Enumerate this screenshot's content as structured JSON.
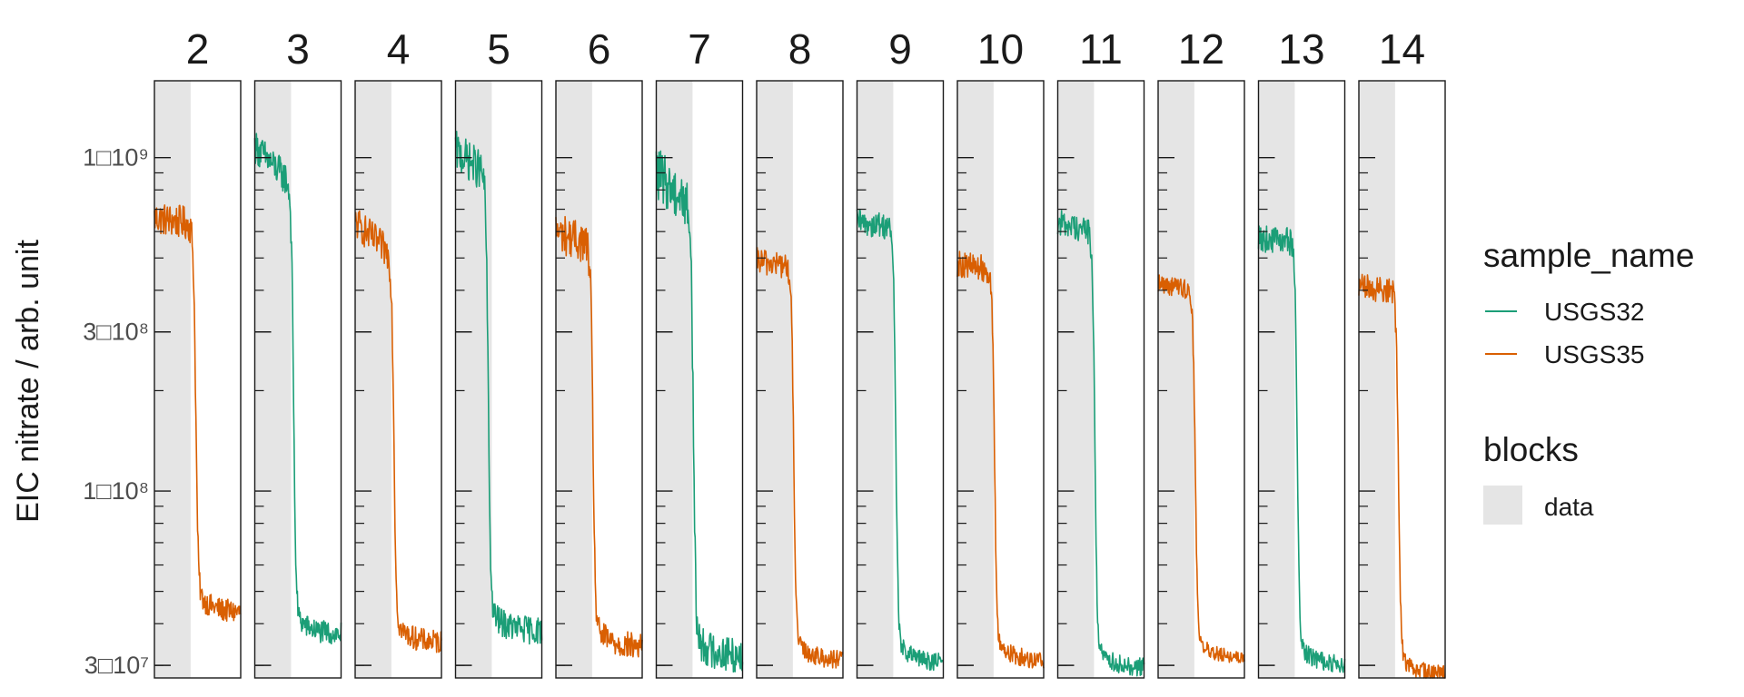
{
  "chart_data": {
    "type": "line",
    "y_scale": "log",
    "ylabel": "EIC nitrate / arb. unit",
    "xlabel": "",
    "ylim": [
      27500000,
      1700000000
    ],
    "y_ticks": [
      {
        "value": 1000000000,
        "label": "1□10⁹"
      },
      {
        "value": 300000000,
        "label": "3□10⁸"
      },
      {
        "value": 100000000,
        "label": "1□10⁸"
      },
      {
        "value": 30000000,
        "label": "3□10⁷"
      }
    ],
    "grid": false,
    "colors": {
      "USGS32": "#1b9e77",
      "USGS35": "#d95f02",
      "data_block": "#e5e5e5"
    },
    "legend": {
      "placement": "right",
      "color_title": "sample_name",
      "fill_title": "blocks",
      "fill_label": "data"
    },
    "panels": [
      {
        "label": "2",
        "sample": "USGS35",
        "start": 660000000,
        "plateau": 630000000,
        "drop": 0.48,
        "end": 43000000,
        "noise": 0.05
      },
      {
        "label": "3",
        "sample": "USGS32",
        "start": 1080000000,
        "plateau": 820000000,
        "drop": 0.45,
        "end": 37000000,
        "noise": 0.05
      },
      {
        "label": "4",
        "sample": "USGS35",
        "start": 640000000,
        "plateau": 500000000,
        "drop": 0.45,
        "end": 35000000,
        "noise": 0.05
      },
      {
        "label": "5",
        "sample": "USGS32",
        "start": 1050000000,
        "plateau": 880000000,
        "drop": 0.38,
        "end": 38000000,
        "noise": 0.06
      },
      {
        "label": "6",
        "sample": "USGS35",
        "start": 600000000,
        "plateau": 540000000,
        "drop": 0.43,
        "end": 34000000,
        "noise": 0.06
      },
      {
        "label": "7",
        "sample": "USGS32",
        "start": 900000000,
        "plateau": 700000000,
        "drop": 0.43,
        "end": 32000000,
        "noise": 0.08
      },
      {
        "label": "8",
        "sample": "USGS35",
        "start": 490000000,
        "plateau": 470000000,
        "drop": 0.43,
        "end": 31000000,
        "noise": 0.04
      },
      {
        "label": "9",
        "sample": "USGS32",
        "start": 640000000,
        "plateau": 620000000,
        "drop": 0.45,
        "end": 30500000,
        "noise": 0.04
      },
      {
        "label": "10",
        "sample": "USGS35",
        "start": 480000000,
        "plateau": 460000000,
        "drop": 0.43,
        "end": 31000000,
        "noise": 0.04
      },
      {
        "label": "11",
        "sample": "USGS32",
        "start": 640000000,
        "plateau": 600000000,
        "drop": 0.43,
        "end": 29500000,
        "noise": 0.04
      },
      {
        "label": "12",
        "sample": "USGS35",
        "start": 420000000,
        "plateau": 400000000,
        "drop": 0.43,
        "end": 31500000,
        "noise": 0.03
      },
      {
        "label": "13",
        "sample": "USGS32",
        "start": 570000000,
        "plateau": 560000000,
        "drop": 0.45,
        "end": 30000000,
        "noise": 0.04
      },
      {
        "label": "14",
        "sample": "USGS35",
        "start": 410000000,
        "plateau": 400000000,
        "drop": 0.46,
        "end": 28000000,
        "noise": 0.04
      }
    ]
  }
}
